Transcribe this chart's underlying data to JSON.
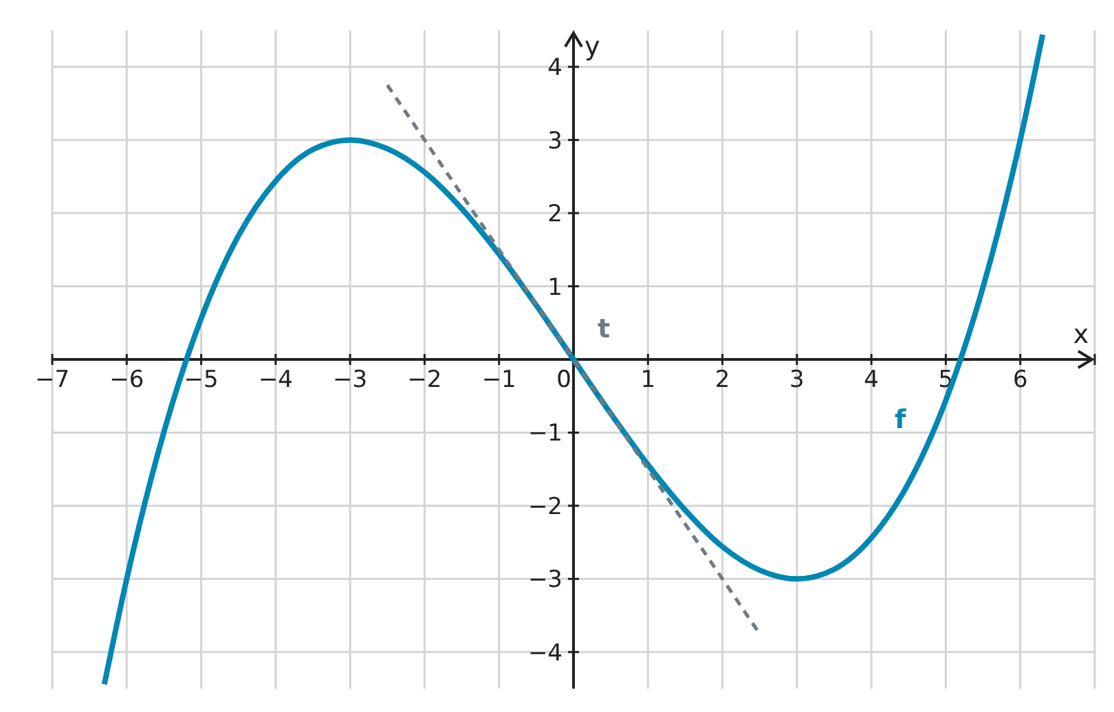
{
  "chart_data": {
    "type": "line",
    "xlabel": "x",
    "ylabel": "y",
    "xlim": [
      -7,
      7
    ],
    "ylim": [
      -4.5,
      4.5
    ],
    "xticks": [
      -7,
      -6,
      -5,
      -4,
      -3,
      -2,
      -1,
      0,
      1,
      2,
      3,
      4,
      5,
      6,
      {
        "value": 7,
        "label": null
      }
    ],
    "yticks": [
      -4,
      -3,
      -2,
      -1,
      {
        "value": 0,
        "label": null
      },
      1,
      2,
      3,
      4
    ],
    "grid": true,
    "marker": "none",
    "series": [
      {
        "name": "f",
        "color": "#0087b4",
        "line_style": "solid",
        "x": [
          -6.3,
          -6,
          -5.5,
          -5,
          -4.5,
          -4,
          -3.5,
          -3,
          -2.5,
          -2,
          -1.5,
          -1,
          -0.5,
          0,
          0.5,
          1,
          1.5,
          2,
          2.5,
          3,
          3.5,
          4,
          4.5,
          5,
          5.5,
          6,
          6.3
        ],
        "values": [
          -4.44,
          -3,
          -0.99,
          0.56,
          1.69,
          2.44,
          2.87,
          3,
          2.88,
          2.56,
          2.06,
          1.44,
          0.74,
          0,
          -0.74,
          -1.44,
          -2.06,
          -2.56,
          -2.88,
          -3,
          -2.87,
          -2.44,
          -1.69,
          -0.56,
          0.99,
          3,
          4.44
        ]
      },
      {
        "name": "t",
        "color": "#6f7a82",
        "line_style": "dashed",
        "x": [
          -2.5,
          2.5
        ],
        "values": [
          3.75,
          -3.75
        ]
      }
    ]
  }
}
